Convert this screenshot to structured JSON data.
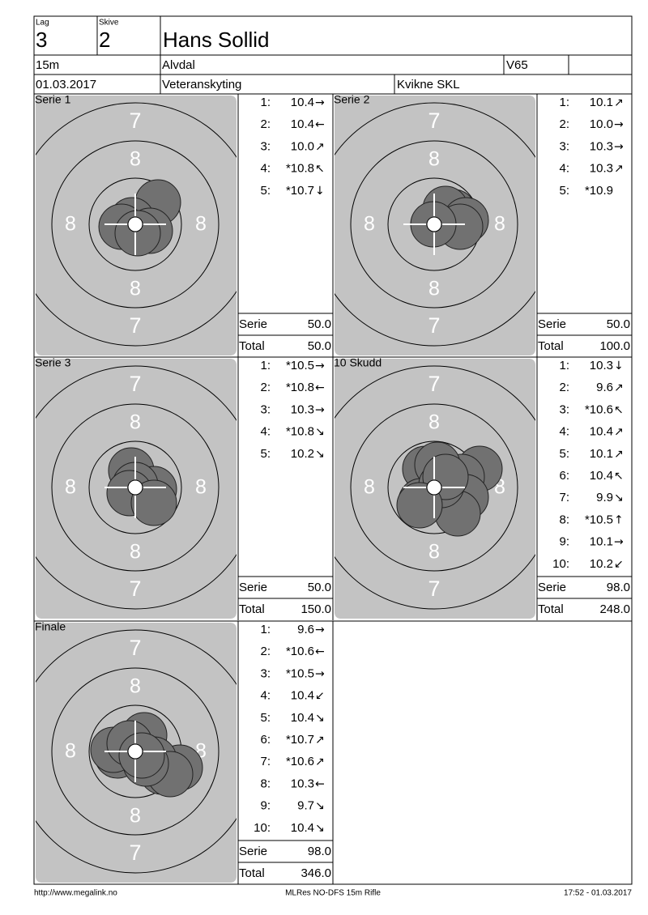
{
  "header": {
    "lag_label": "Lag",
    "lag": "3",
    "skive_label": "Skive",
    "skive": "2",
    "name": "Hans Sollid",
    "distance": "15m",
    "place": "Alvdal",
    "class": "V65",
    "date": "01.03.2017",
    "event": "Veteranskyting",
    "club": "Kvikne SKL"
  },
  "target": {
    "outer": "7",
    "inner": "8"
  },
  "panels": [
    {
      "title": "Serie 1",
      "shots": [
        {
          "n": "1:",
          "score": "10.4",
          "dir": "→"
        },
        {
          "n": "2:",
          "score": "10.4",
          "dir": "←"
        },
        {
          "n": "3:",
          "score": "10.0",
          "dir": "↗"
        },
        {
          "n": "4:",
          "score": "*10.8",
          "dir": "↖"
        },
        {
          "n": "5:",
          "score": "*10.7",
          "dir": "↓"
        }
      ],
      "serie_label": "Serie",
      "serie": "50.0",
      "total_label": "Total",
      "total": "50.0"
    },
    {
      "title": "Serie 2",
      "shots": [
        {
          "n": "1:",
          "score": "10.1",
          "dir": "↗"
        },
        {
          "n": "2:",
          "score": "10.0",
          "dir": "→"
        },
        {
          "n": "3:",
          "score": "10.3",
          "dir": "→"
        },
        {
          "n": "4:",
          "score": "10.3",
          "dir": "↗"
        },
        {
          "n": "5:",
          "score": "*10.9"
        }
      ],
      "serie_label": "Serie",
      "serie": "50.0",
      "total_label": "Total",
      "total": "100.0"
    },
    {
      "title": "Serie 3",
      "shots": [
        {
          "n": "1:",
          "score": "*10.5",
          "dir": "→"
        },
        {
          "n": "2:",
          "score": "*10.8",
          "dir": "←"
        },
        {
          "n": "3:",
          "score": "10.3",
          "dir": "→"
        },
        {
          "n": "4:",
          "score": "*10.8",
          "dir": "↘"
        },
        {
          "n": "5:",
          "score": "10.2",
          "dir": "↘"
        }
      ],
      "serie_label": "Serie",
      "serie": "50.0",
      "total_label": "Total",
      "total": "150.0"
    },
    {
      "title": "10 Skudd",
      "shots": [
        {
          "n": "1:",
          "score": "10.3",
          "dir": "↓"
        },
        {
          "n": "2:",
          "score": "9.6",
          "dir": "↗"
        },
        {
          "n": "3:",
          "score": "*10.6",
          "dir": "↖"
        },
        {
          "n": "4:",
          "score": "10.4",
          "dir": "↗"
        },
        {
          "n": "5:",
          "score": "10.1",
          "dir": "↗"
        },
        {
          "n": "6:",
          "score": "10.4",
          "dir": "↖"
        },
        {
          "n": "7:",
          "score": "9.9",
          "dir": "↘"
        },
        {
          "n": "8:",
          "score": "*10.5",
          "dir": "↑"
        },
        {
          "n": "9:",
          "score": "10.1",
          "dir": "→"
        },
        {
          "n": "10:",
          "score": "10.2",
          "dir": "↙"
        }
      ],
      "serie_label": "Serie",
      "serie": "98.0",
      "total_label": "Total",
      "total": "248.0"
    },
    {
      "title": "Finale",
      "shots": [
        {
          "n": "1:",
          "score": "9.6",
          "dir": "→"
        },
        {
          "n": "2:",
          "score": "*10.6",
          "dir": "←"
        },
        {
          "n": "3:",
          "score": "*10.5",
          "dir": "→"
        },
        {
          "n": "4:",
          "score": "10.4",
          "dir": "↙"
        },
        {
          "n": "5:",
          "score": "10.4",
          "dir": "↘"
        },
        {
          "n": "6:",
          "score": "*10.7",
          "dir": "↗"
        },
        {
          "n": "7:",
          "score": "*10.6",
          "dir": "↗"
        },
        {
          "n": "8:",
          "score": "10.3",
          "dir": "←"
        },
        {
          "n": "9:",
          "score": "9.7",
          "dir": "↘"
        },
        {
          "n": "10:",
          "score": "10.4",
          "dir": "↘"
        }
      ],
      "serie_label": "Serie",
      "serie": "98.0",
      "total_label": "Total",
      "total": "346.0"
    }
  ],
  "footer": {
    "left": "http://www.megalink.no",
    "center": "MLRes NO-DFS 15m Rifle",
    "right": "17:52 - 01.03.2017"
  }
}
